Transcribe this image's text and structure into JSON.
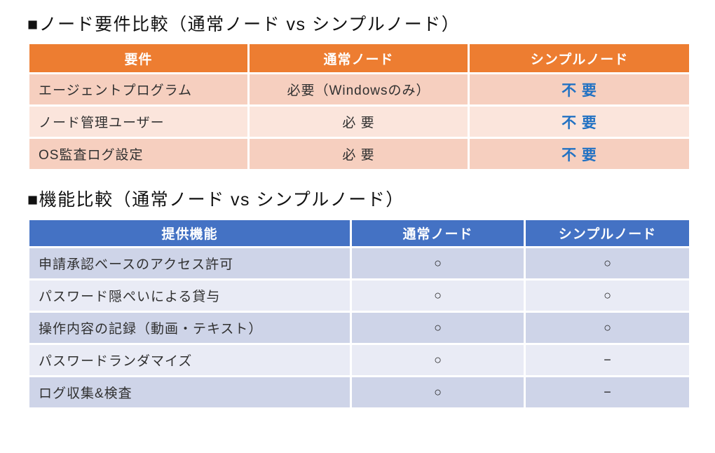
{
  "colors": {
    "table1_header_bg": "#ED7D31",
    "table1_row_dark": "#F6CFBF",
    "table1_row_light": "#FBE5DC",
    "table2_header_bg": "#4472C4",
    "table2_row_dark": "#CED4E8",
    "table2_row_light": "#E9EBF5",
    "header_text": "#FFFFFF",
    "highlight_text": "#2272C3"
  },
  "section1": {
    "title": "■ノード要件比較（通常ノード vs シンプルノード）",
    "table": {
      "headers": [
        "要件",
        "通常ノード",
        "シンプルノード"
      ],
      "rows": [
        {
          "requirement": "エージェントプログラム",
          "normal_node": "必要（Windowsのみ）",
          "simple_node": "不 要"
        },
        {
          "requirement": "ノード管理ユーザー",
          "normal_node": "必 要",
          "simple_node": "不 要"
        },
        {
          "requirement": "OS監査ログ設定",
          "normal_node": "必 要",
          "simple_node": "不 要"
        }
      ]
    }
  },
  "section2": {
    "title": "■機能比較（通常ノード vs シンプルノード）",
    "table": {
      "headers": [
        "提供機能",
        "通常ノード",
        "シンプルノード"
      ],
      "rows": [
        {
          "feature": "申請承認ベースのアクセス許可",
          "normal_node": "○",
          "simple_node": "○"
        },
        {
          "feature": "パスワード隠ぺいによる貸与",
          "normal_node": "○",
          "simple_node": "○"
        },
        {
          "feature": "操作内容の記録（動画・テキスト）",
          "normal_node": "○",
          "simple_node": "○"
        },
        {
          "feature": "パスワードランダマイズ",
          "normal_node": "○",
          "simple_node": "−"
        },
        {
          "feature": "ログ収集&検査",
          "normal_node": "○",
          "simple_node": "−"
        }
      ]
    }
  }
}
